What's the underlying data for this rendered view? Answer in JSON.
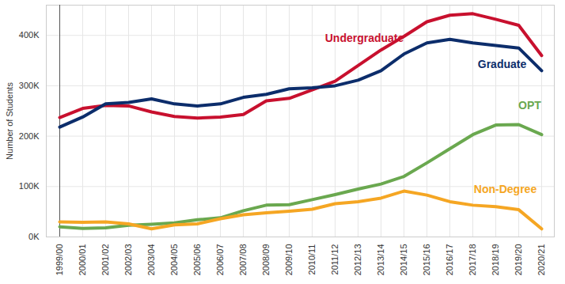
{
  "chart_data": {
    "type": "line",
    "y_label": "Number of Students",
    "x": [
      "1999/00",
      "2000/01",
      "2001/02",
      "2002/03",
      "2003/04",
      "2004/05",
      "2005/06",
      "2006/07",
      "2007/08",
      "2008/09",
      "2009/10",
      "2010/11",
      "2011/12",
      "2012/13",
      "2013/14",
      "2014/15",
      "2015/16",
      "2016/17",
      "2017/18",
      "2018/19",
      "2019/20",
      "2020/21"
    ],
    "series": [
      {
        "name": "Undergraduate",
        "color": "#c8102e",
        "values": [
          237000,
          255000,
          261000,
          260000,
          248000,
          239000,
          236000,
          238000,
          243000,
          270000,
          275000,
          292000,
          309000,
          340000,
          371000,
          398000,
          427000,
          440000,
          443000,
          432000,
          420000,
          360000
        ]
      },
      {
        "name": "Graduate",
        "color": "#0c2d6b",
        "values": [
          218000,
          238000,
          264000,
          267000,
          274000,
          264000,
          260000,
          264000,
          277000,
          283000,
          294000,
          296000,
          300000,
          311000,
          330000,
          363000,
          385000,
          392000,
          385000,
          380000,
          375000,
          330000
        ]
      },
      {
        "name": "OPT",
        "color": "#6aa84f",
        "values": [
          20000,
          17000,
          18000,
          23000,
          25000,
          28000,
          34000,
          38000,
          52000,
          63000,
          64000,
          74000,
          84000,
          95000,
          105000,
          120000,
          147000,
          175000,
          203000,
          222000,
          223000,
          203000
        ]
      },
      {
        "name": "Non-Degree",
        "color": "#f5a623",
        "values": [
          30000,
          29000,
          30000,
          26000,
          16000,
          24000,
          26000,
          36000,
          44000,
          48000,
          51000,
          55000,
          66000,
          70000,
          77000,
          91000,
          83000,
          70000,
          63000,
          60000,
          54000,
          16000
        ]
      }
    ],
    "ylim": [
      0,
      460000
    ],
    "yticks": [
      {
        "value": 0,
        "label": "0K"
      },
      {
        "value": 100000,
        "label": "100K"
      },
      {
        "value": 200000,
        "label": "200K"
      },
      {
        "value": 300000,
        "label": "300K"
      },
      {
        "value": 400000,
        "label": "400K"
      }
    ],
    "grid": true
  }
}
